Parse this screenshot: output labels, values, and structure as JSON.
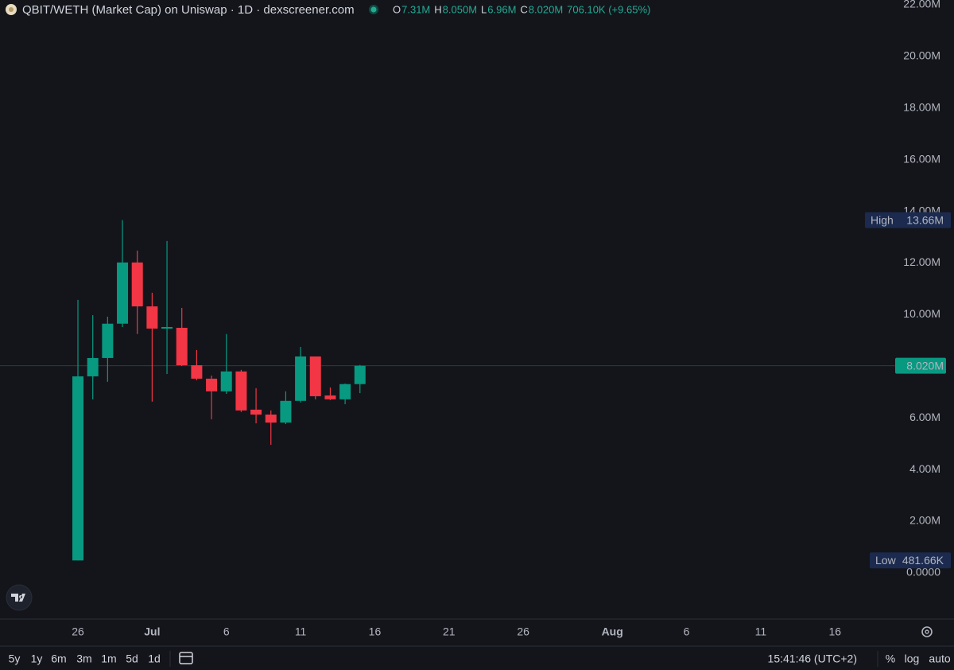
{
  "chart_data": {
    "type": "candlestick",
    "title": "QBIT/WETH (Market Cap) on Uniswap · 1D · dexscreener.com",
    "legend_ohlc": [
      {
        "label": "O",
        "text": "7.31M"
      },
      {
        "label": "H",
        "text": "8.050M"
      },
      {
        "label": "L",
        "text": "6.96M"
      },
      {
        "label": "C",
        "text": "8.020M"
      }
    ],
    "change": "706.10K (+9.65%)",
    "x": [
      0,
      1,
      2,
      3,
      4,
      5,
      6,
      7,
      8,
      9,
      10,
      11,
      12,
      13,
      14,
      15,
      16,
      17,
      18,
      19
    ],
    "open": [
      0.48,
      7.61,
      8.32,
      9.65,
      12.02,
      10.32,
      9.46,
      9.49,
      8.04,
      7.52,
      7.03,
      7.8,
      6.32,
      6.13,
      5.82,
      6.66,
      8.38,
      6.87,
      6.72,
      7.31
    ],
    "high": [
      10.57,
      9.98,
      9.92,
      13.66,
      12.48,
      10.85,
      12.85,
      10.26,
      8.63,
      7.64,
      9.25,
      7.86,
      7.15,
      6.29,
      7.03,
      8.75,
      8.38,
      7.18,
      7.33,
      8.05
    ],
    "low": [
      0.48166,
      6.72,
      7.4,
      9.52,
      9.25,
      6.63,
      7.7,
      8.01,
      7.46,
      5.95,
      6.93,
      6.23,
      5.79,
      4.96,
      5.76,
      6.6,
      6.72,
      6.69,
      6.53,
      6.96
    ],
    "close": [
      7.61,
      8.32,
      9.65,
      12.02,
      10.32,
      9.46,
      9.52,
      8.04,
      7.52,
      7.03,
      7.8,
      6.29,
      6.13,
      5.82,
      6.66,
      8.38,
      6.84,
      6.72,
      7.31,
      8.02
    ],
    "up_color": "#089981",
    "down_color": "#f23645",
    "xlim": [
      -5.25,
      54.2
    ],
    "xticks": [
      {
        "value": 0,
        "label": "26"
      },
      {
        "value": 5,
        "label": "Jul"
      },
      {
        "value": 10,
        "label": "6"
      },
      {
        "value": 15,
        "label": "11"
      },
      {
        "value": 20,
        "label": "16"
      },
      {
        "value": 25,
        "label": "21"
      },
      {
        "value": 30,
        "label": "26"
      },
      {
        "value": 36,
        "label": "Aug"
      },
      {
        "value": 41,
        "label": "6"
      },
      {
        "value": 46,
        "label": "11"
      },
      {
        "value": 51,
        "label": "16"
      }
    ],
    "ylim": [
      -1.79,
      22
    ],
    "yticks": [
      {
        "value": 0,
        "label": "0.0000"
      },
      {
        "value": 2,
        "label": "2.00M"
      },
      {
        "value": 4,
        "label": "4.00M"
      },
      {
        "value": 6,
        "label": "6.00M"
      },
      {
        "value": 8,
        "label": "8.00M"
      },
      {
        "value": 10,
        "label": "10.00M"
      },
      {
        "value": 12,
        "label": "12.00M"
      },
      {
        "value": 14,
        "label": "14.00M"
      },
      {
        "value": 16,
        "label": "16.00M"
      },
      {
        "value": 18,
        "label": "18.00M"
      },
      {
        "value": 20,
        "label": "20.00M"
      },
      {
        "value": 22,
        "label": "22.00M"
      }
    ],
    "high_marker": {
      "label": "High",
      "value": 13.66,
      "value_label": "13.66M"
    },
    "low_marker": {
      "label": "Low",
      "value": 0.48166,
      "value_label": "481.66K"
    },
    "last_price": {
      "value": 8.02,
      "value_label": "8.020M"
    }
  },
  "toolbar": {
    "ranges": [
      "5y",
      "1y",
      "6m",
      "3m",
      "1m",
      "5d",
      "1d"
    ],
    "time": "15:41:46 (UTC+2)",
    "options": [
      "%",
      "log",
      "auto"
    ]
  }
}
